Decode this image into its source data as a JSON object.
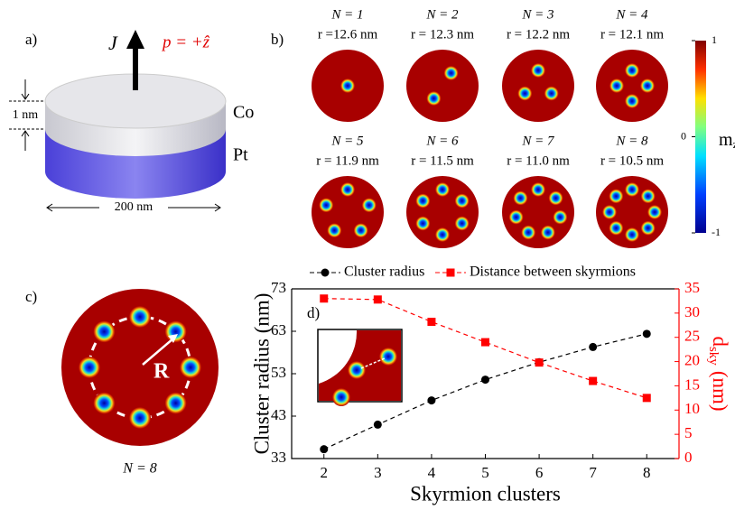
{
  "chart_data": {
    "type": "line",
    "panel_label": "d)",
    "x": [
      2,
      3,
      4,
      5,
      6,
      7,
      8
    ],
    "xlim": [
      1.4,
      8.6
    ],
    "xticks": [
      2,
      3,
      4,
      5,
      6,
      7,
      8
    ],
    "xlabel": "Skyrmion clusters",
    "ylabel": "Cluster radius (nm)",
    "ylim": [
      33,
      73
    ],
    "yticks": [
      33,
      43,
      53,
      63,
      73
    ],
    "y2label": "d",
    "y2label_sub": "sky",
    "y2label_unit": "(nm)",
    "y2lim": [
      0,
      35
    ],
    "y2ticks": [
      0,
      5,
      10,
      15,
      20,
      25,
      30,
      35
    ],
    "series": [
      {
        "name": "Cluster radius",
        "color": "#000000",
        "marker": "circle",
        "values": [
          35.2,
          41,
          46.7,
          51.6,
          55.7,
          59.3,
          62.4
        ]
      },
      {
        "name": "Distance between skyrmions",
        "color": "#ff0000",
        "marker": "square",
        "axis": "y2",
        "values": [
          33,
          32.8,
          28.2,
          24,
          19.8,
          16,
          12.5
        ]
      }
    ],
    "inset_label": "d",
    "inset_label_sub": "sky"
  },
  "panel_a": {
    "label": "a)",
    "current": "J",
    "polarization": "p = +ẑ",
    "top_layer": "Co",
    "bottom_layer": "Pt",
    "thickness": "1 nm",
    "diameter": "200 nm"
  },
  "panel_b": {
    "label": "b)",
    "cells": [
      {
        "n": "N = 1",
        "r": "r =12.6 nm"
      },
      {
        "n": "N = 2",
        "r": "r = 12.3 nm"
      },
      {
        "n": "N = 3",
        "r": "r = 12.2 nm"
      },
      {
        "n": "N = 4",
        "r": "r = 12.1 nm"
      },
      {
        "n": "N = 5",
        "r": "r = 11.9 nm"
      },
      {
        "n": "N = 6",
        "r": "r = 11.5 nm"
      },
      {
        "n": "N = 7",
        "r": "r = 11.0 nm"
      },
      {
        "n": "N = 8",
        "r": "r = 10.5 nm"
      }
    ],
    "colorbar": {
      "label": "m",
      "label_sub": "z",
      "ticks": [
        1,
        0,
        -1
      ]
    }
  },
  "panel_c": {
    "label": "c)",
    "radius_label": "R",
    "caption": "N = 8"
  }
}
